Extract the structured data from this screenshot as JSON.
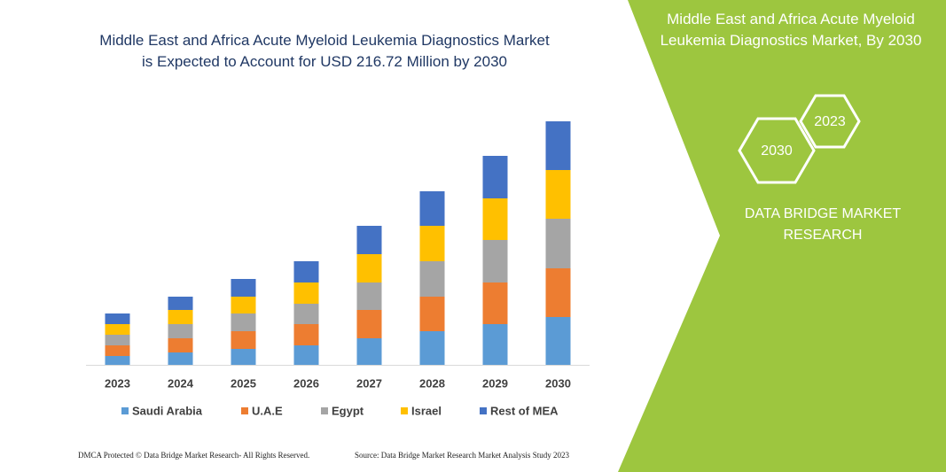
{
  "chart_data": {
    "type": "bar",
    "stacked": true,
    "title": "Middle East and Africa Acute Myeloid Leukemia Diagnostics Market is Expected to Account for USD 216.72 Million by 2030",
    "categories": [
      "2023",
      "2024",
      "2025",
      "2026",
      "2027",
      "2028",
      "2029",
      "2030"
    ],
    "series": [
      {
        "name": "Saudi Arabia",
        "color": "#5b9bd5",
        "values": [
          10,
          14,
          18,
          22,
          30,
          38,
          46,
          54
        ]
      },
      {
        "name": "U.A.E",
        "color": "#ed7d31",
        "values": [
          12,
          16,
          20,
          24,
          32,
          39,
          47,
          55
        ]
      },
      {
        "name": "Egypt",
        "color": "#a5a5a5",
        "values": [
          12,
          16,
          20,
          23,
          31,
          40,
          48,
          56
        ]
      },
      {
        "name": "Israel",
        "color": "#ffc000",
        "values": [
          12,
          16,
          19,
          24,
          32,
          40,
          47,
          55
        ]
      },
      {
        "name": "Rest of MEA",
        "color": "#4472c4",
        "values": [
          12,
          15,
          20,
          24,
          32,
          39,
          48,
          55
        ]
      }
    ]
  },
  "panel": {
    "title": "Middle East and Africa Acute Myeloid Leukemia Diagnostics Market, By 2030",
    "hexagons": [
      "2030",
      "2023"
    ],
    "brand": "DATA BRIDGE MARKET RESEARCH"
  },
  "footer": {
    "left": "DMCA Protected © Data Bridge Market Research-  All Rights Reserved.",
    "right": "Source: Data Bridge Market Research  Market Analysis Study 2023"
  }
}
